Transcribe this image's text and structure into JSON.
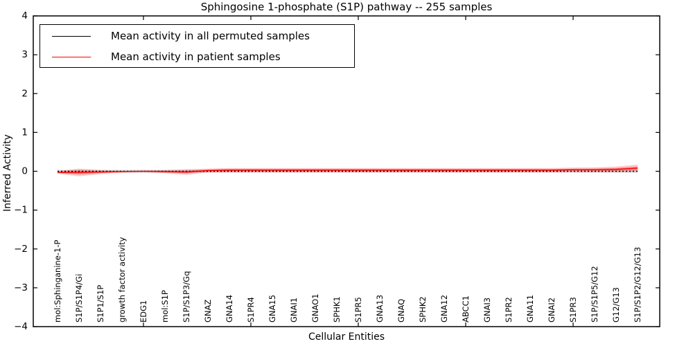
{
  "figure": {
    "title": "Sphingosine 1-phosphate (S1P) pathway -- 255 samples"
  },
  "legend": {
    "items": [
      {
        "label": "Mean activity in all permuted samples",
        "color": "#000000"
      },
      {
        "label": "Mean activity in patient samples",
        "color": "#ff0000"
      }
    ]
  },
  "chart_data": {
    "type": "line",
    "title": "Sphingosine 1-phosphate (S1P) pathway -- 255 samples",
    "xlabel": "Cellular Entities",
    "ylabel": "Inferred Activity",
    "ylim": [
      -4,
      4
    ],
    "yticks": [
      4,
      3,
      2,
      1,
      0,
      -1,
      -2,
      -3,
      -4
    ],
    "x_major_tick_indices": [
      4,
      9,
      14,
      19,
      24
    ],
    "grid": false,
    "legend_position": "upper left",
    "categories": [
      "mol:Sphinganine-1-P",
      "S1P/S1P4/Gi",
      "S1P1/S1P",
      "growth factor activity",
      "EDG1",
      "mol:S1P",
      "S1P/S1P3/Gq",
      "GNAZ",
      "GNA14",
      "S1PR4",
      "GNA15",
      "GNAI1",
      "GNAO1",
      "SPHK1",
      "S1PR5",
      "GNA13",
      "GNAQ",
      "SPHK2",
      "GNA12",
      "ABCC1",
      "GNAI3",
      "S1PR2",
      "GNA11",
      "GNAI2",
      "S1PR3",
      "S1P/S1P5/G12",
      "G12/G13",
      "S1P/S1P2/G12/G13"
    ],
    "series": [
      {
        "name": "Mean activity in all permuted samples",
        "color": "#000000",
        "line_style": "dotted",
        "values": [
          0,
          0,
          0,
          0,
          0,
          0,
          0,
          0,
          0,
          0,
          0,
          0,
          0,
          0,
          0,
          0,
          0,
          0,
          0,
          0,
          0,
          0,
          0,
          0,
          0,
          0,
          0,
          0
        ],
        "band_halfwidth": [
          0.035,
          0.035,
          0.035,
          0.035,
          0.035,
          0.035,
          0.035,
          0.035,
          0.035,
          0.035,
          0.035,
          0.035,
          0.035,
          0.035,
          0.035,
          0.035,
          0.035,
          0.035,
          0.035,
          0.035,
          0.035,
          0.035,
          0.035,
          0.035,
          0.035,
          0.035,
          0.035,
          0.035
        ],
        "band_color": "#888888",
        "band_opacity": 0.35
      },
      {
        "name": "Mean activity in patient samples",
        "color": "#ff0000",
        "line_style": "solid",
        "values": [
          -0.03,
          -0.03,
          -0.02,
          -0.01,
          0.0,
          -0.01,
          -0.02,
          0.02,
          0.03,
          0.03,
          0.03,
          0.03,
          0.03,
          0.03,
          0.03,
          0.03,
          0.03,
          0.03,
          0.03,
          0.03,
          0.03,
          0.03,
          0.03,
          0.03,
          0.04,
          0.04,
          0.05,
          0.08
        ],
        "band_halfwidth": [
          0.03,
          0.1,
          0.05,
          0.02,
          0.02,
          0.04,
          0.07,
          0.05,
          0.055,
          0.055,
          0.055,
          0.055,
          0.055,
          0.055,
          0.055,
          0.055,
          0.055,
          0.055,
          0.055,
          0.055,
          0.055,
          0.055,
          0.055,
          0.055,
          0.055,
          0.06,
          0.07,
          0.09
        ],
        "band_color": "#ff0000",
        "band_opacity": 0.22
      }
    ]
  }
}
